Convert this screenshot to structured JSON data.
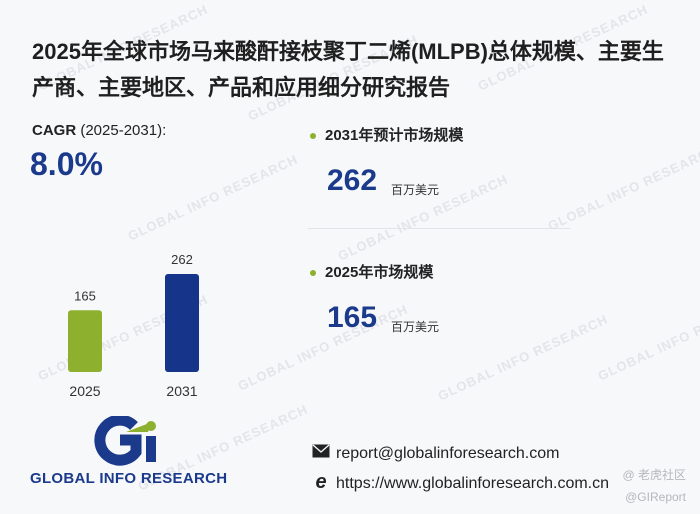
{
  "title": "2025年全球市场马来酸酐接枝聚丁二烯(MLPB)总体规模、主要生产商、主要地区、产品和应用细分研究报告",
  "cagr": {
    "label_bold": "CAGR",
    "label_period": "(2025-2031):",
    "value": "8.0%"
  },
  "kpis": [
    {
      "label": "2031年预计市场规模",
      "value": "262",
      "unit": "百万美元"
    },
    {
      "label": "2025年市场规模",
      "value": "165",
      "unit": "百万美元"
    }
  ],
  "chart_data": {
    "type": "bar",
    "categories": [
      "2025",
      "2031"
    ],
    "values": [
      165,
      262
    ],
    "title": "",
    "xlabel": "",
    "ylabel": "",
    "ylim": [
      0,
      262
    ],
    "colors": [
      "#8db02f",
      "#163489"
    ],
    "grid": false
  },
  "logo": {
    "mark": "Gi",
    "name": "GLOBAL INFO RESEARCH",
    "mark_color": "#1b3a8c",
    "accent_color": "#8db02f"
  },
  "watermark": "GLOBAL INFO RESEARCH",
  "contact": {
    "email_icon": "envelope-icon",
    "email": "report@globalinforesearch.com",
    "web_icon": "internet-explorer-icon",
    "website": "https://www.globalinforesearch.com.cn"
  },
  "corner_marks": {
    "top": "@ 老虎社区",
    "bottom": "@GIReport"
  }
}
